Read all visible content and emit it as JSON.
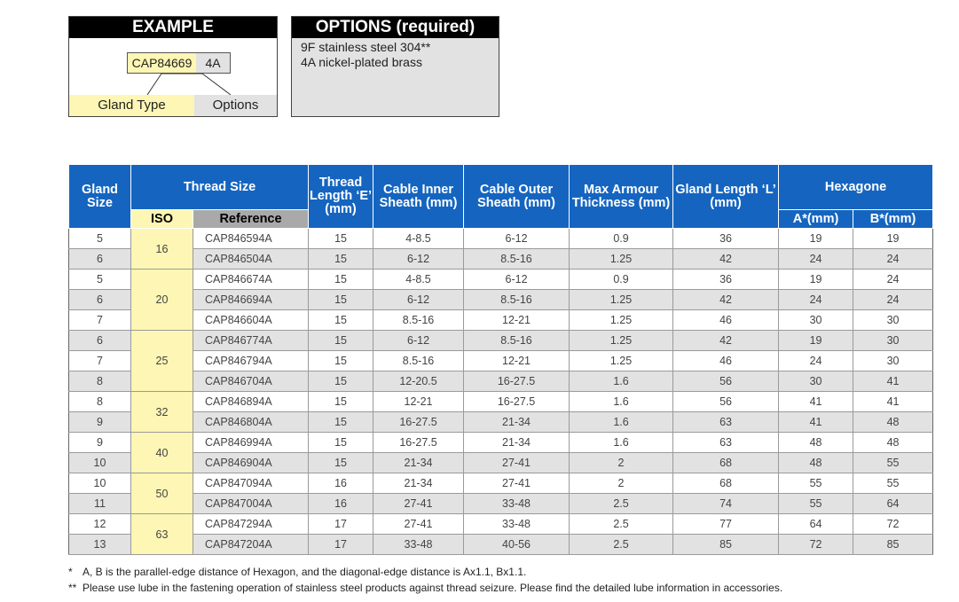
{
  "example": {
    "title": "EXAMPLE",
    "code_type": "CAP84669",
    "code_option": "4A",
    "label_type": "Gland Type",
    "label_options": "Options"
  },
  "options": {
    "title": "OPTIONS (required)",
    "items": [
      "9F  stainless steel 304**",
      "4A  nickel-plated brass"
    ]
  },
  "table": {
    "headers": {
      "gland_size": "Gland Size",
      "thread_size": "Thread Size",
      "iso": "ISO",
      "reference": "Reference",
      "thread_length": "Thread Length ‘E’ (mm)",
      "inner_sheath": "Cable Inner Sheath (mm)",
      "outer_sheath": "Cable Outer Sheath (mm)",
      "armour": "Max Armour Thickness (mm)",
      "gland_length": "Gland Length ‘L’ (mm)",
      "hexagone": "Hexagone",
      "a": "A*(mm)",
      "b": "B*(mm)"
    },
    "rows": [
      [
        "5",
        "16",
        "CAP846594A",
        "15",
        "4-8.5",
        "6-12",
        "0.9",
        "36",
        "19",
        "19"
      ],
      [
        "6",
        "",
        "CAP846504A",
        "15",
        "6-12",
        "8.5-16",
        "1.25",
        "42",
        "24",
        "24"
      ],
      [
        "5",
        "20",
        "CAP846674A",
        "15",
        "4-8.5",
        "6-12",
        "0.9",
        "36",
        "19",
        "24"
      ],
      [
        "6",
        "",
        "CAP846694A",
        "15",
        "6-12",
        "8.5-16",
        "1.25",
        "42",
        "24",
        "24"
      ],
      [
        "7",
        "",
        "CAP846604A",
        "15",
        "8.5-16",
        "12-21",
        "1.25",
        "46",
        "30",
        "30"
      ],
      [
        "6",
        "25",
        "CAP846774A",
        "15",
        "6-12",
        "8.5-16",
        "1.25",
        "42",
        "19",
        "30"
      ],
      [
        "7",
        "",
        "CAP846794A",
        "15",
        "8.5-16",
        "12-21",
        "1.25",
        "46",
        "24",
        "30"
      ],
      [
        "8",
        "",
        "CAP846704A",
        "15",
        "12-20.5",
        "16-27.5",
        "1.6",
        "56",
        "30",
        "41"
      ],
      [
        "8",
        "32",
        "CAP846894A",
        "15",
        "12-21",
        "16-27.5",
        "1.6",
        "56",
        "41",
        "41"
      ],
      [
        "9",
        "",
        "CAP846804A",
        "15",
        "16-27.5",
        "21-34",
        "1.6",
        "63",
        "41",
        "48"
      ],
      [
        "9",
        "40",
        "CAP846994A",
        "15",
        "16-27.5",
        "21-34",
        "1.6",
        "63",
        "48",
        "48"
      ],
      [
        "10",
        "",
        "CAP846904A",
        "15",
        "21-34",
        "27-41",
        "2",
        "68",
        "48",
        "55"
      ],
      [
        "10",
        "50",
        "CAP847094A",
        "16",
        "21-34",
        "27-41",
        "2",
        "68",
        "55",
        "55"
      ],
      [
        "11",
        "",
        "CAP847004A",
        "16",
        "27-41",
        "33-48",
        "2.5",
        "74",
        "55",
        "64"
      ],
      [
        "12",
        "63",
        "CAP847294A",
        "17",
        "27-41",
        "33-48",
        "2.5",
        "77",
        "64",
        "72"
      ],
      [
        "13",
        "",
        "CAP847204A",
        "17",
        "33-48",
        "40-56",
        "2.5",
        "85",
        "72",
        "85"
      ]
    ]
  },
  "footnotes": [
    {
      "mark": "*",
      "text": "A, B is the parallel-edge distance of Hexagon, and the diagonal-edge distance is Ax1.1, Bx1.1."
    },
    {
      "mark": "**",
      "text": "Please use lube in the fastening operation of stainless steel products against thread seizure. Please find the detailed lube information in accessories."
    }
  ]
}
